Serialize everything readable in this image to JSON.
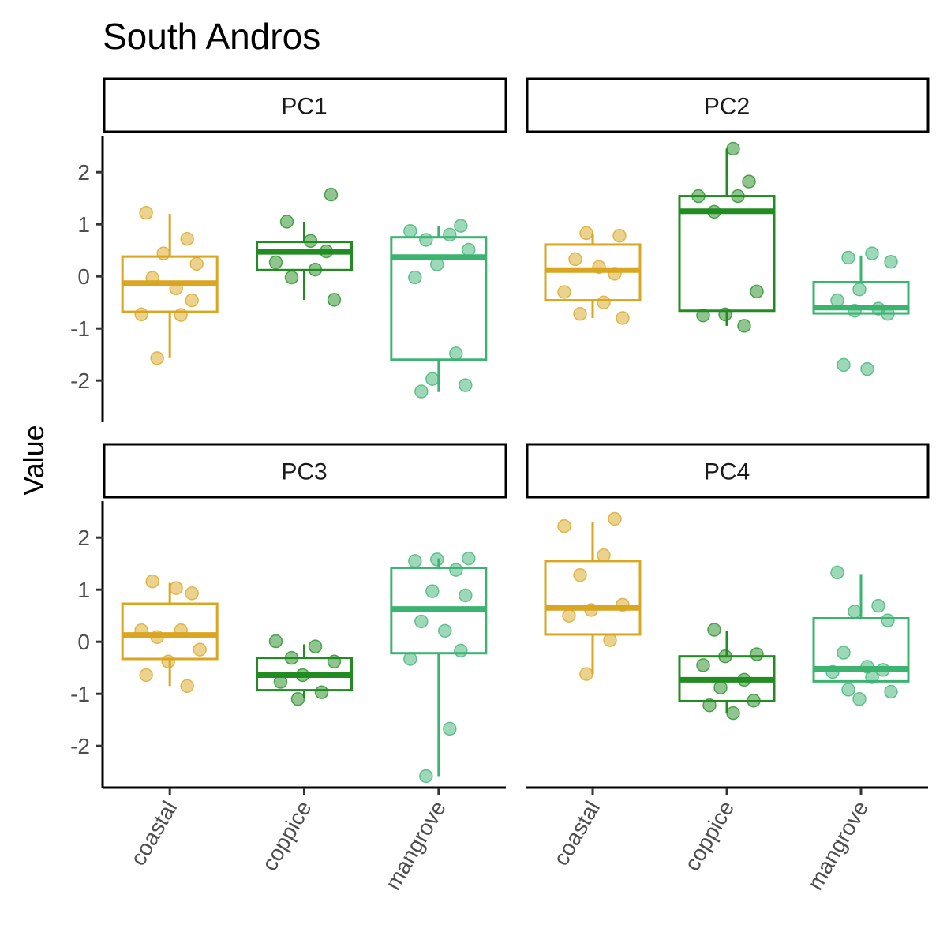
{
  "chart_data": {
    "type": "box",
    "title": "South Andros",
    "ylabel": "Value",
    "xlabel": "",
    "categories": [
      "coastal",
      "coppice",
      "mangrove"
    ],
    "ylim": [
      -2.8,
      2.7
    ],
    "yticks": [
      -2,
      -1,
      0,
      1,
      2
    ],
    "ytick_labels": [
      "-2",
      "-1",
      "0",
      "1",
      "2"
    ],
    "grid": false,
    "legend": "none",
    "colors": {
      "coastal": "#DAA520",
      "coppice": "#228B22",
      "mangrove": "#3CB371"
    },
    "panels": [
      {
        "name": "PC1",
        "boxes": [
          {
            "category": "coastal",
            "q1": -0.68,
            "median": -0.13,
            "q3": 0.38,
            "wlo": -1.57,
            "whi": 1.2
          },
          {
            "category": "coppice",
            "q1": 0.12,
            "median": 0.47,
            "q3": 0.66,
            "wlo": -0.45,
            "whi": 1.05
          },
          {
            "category": "mangrove",
            "q1": -1.6,
            "median": 0.37,
            "q3": 0.75,
            "wlo": -2.22,
            "whi": 0.97
          }
        ],
        "points": [
          {
            "category": "coastal",
            "values": [
              1.22,
              0.72,
              0.44,
              0.24,
              -0.03,
              -0.23,
              -0.46,
              -0.73,
              -0.74,
              -1.57
            ]
          },
          {
            "category": "coppice",
            "values": [
              1.57,
              1.05,
              0.68,
              0.48,
              0.27,
              0.13,
              -0.02,
              -0.45
            ]
          },
          {
            "category": "mangrove",
            "values": [
              0.97,
              0.87,
              0.8,
              0.7,
              0.51,
              0.23,
              -0.02,
              -1.48,
              -1.97,
              -2.09,
              -2.21
            ]
          }
        ]
      },
      {
        "name": "PC2",
        "boxes": [
          {
            "category": "coastal",
            "q1": -0.46,
            "median": 0.12,
            "q3": 0.61,
            "wlo": -0.8,
            "whi": 0.83
          },
          {
            "category": "coppice",
            "q1": -0.66,
            "median": 1.25,
            "q3": 1.54,
            "wlo": -0.95,
            "whi": 2.45
          },
          {
            "category": "mangrove",
            "q1": -0.71,
            "median": -0.6,
            "q3": -0.11,
            "wlo": -0.71,
            "whi": 0.4
          }
        ],
        "points": [
          {
            "category": "coastal",
            "values": [
              0.83,
              0.78,
              0.33,
              0.18,
              0.05,
              -0.3,
              -0.5,
              -0.72,
              -0.8
            ]
          },
          {
            "category": "coppice",
            "values": [
              2.45,
              1.82,
              1.54,
              1.54,
              1.24,
              -0.29,
              -0.73,
              -0.75,
              -0.95
            ]
          },
          {
            "category": "mangrove",
            "values": [
              0.44,
              0.36,
              0.28,
              -0.25,
              -0.46,
              -0.62,
              -0.66,
              -0.72,
              -1.7,
              -1.78
            ]
          }
        ]
      },
      {
        "name": "PC3",
        "boxes": [
          {
            "category": "coastal",
            "q1": -0.33,
            "median": 0.13,
            "q3": 0.73,
            "wlo": -0.85,
            "whi": 1.13
          },
          {
            "category": "coppice",
            "q1": -0.93,
            "median": -0.64,
            "q3": -0.31,
            "wlo": -1.08,
            "whi": -0.05
          },
          {
            "category": "mangrove",
            "q1": -0.22,
            "median": 0.63,
            "q3": 1.42,
            "wlo": -2.58,
            "whi": 1.6
          }
        ],
        "points": [
          {
            "category": "coastal",
            "values": [
              1.16,
              1.03,
              0.93,
              0.22,
              0.22,
              0.09,
              -0.15,
              -0.38,
              -0.64,
              -0.85
            ]
          },
          {
            "category": "coppice",
            "values": [
              0.01,
              -0.09,
              -0.31,
              -0.38,
              -0.64,
              -0.77,
              -0.97,
              -1.1
            ]
          },
          {
            "category": "mangrove",
            "values": [
              1.6,
              1.58,
              1.55,
              1.38,
              0.97,
              0.89,
              0.39,
              0.21,
              -0.17,
              -0.33,
              -1.67,
              -2.58
            ]
          }
        ]
      },
      {
        "name": "PC4",
        "boxes": [
          {
            "category": "coastal",
            "q1": 0.14,
            "median": 0.65,
            "q3": 1.55,
            "wlo": -0.62,
            "whi": 2.3
          },
          {
            "category": "coppice",
            "q1": -1.14,
            "median": -0.73,
            "q3": -0.28,
            "wlo": -1.37,
            "whi": 0.2
          },
          {
            "category": "mangrove",
            "q1": -0.76,
            "median": -0.52,
            "q3": 0.45,
            "wlo": -0.76,
            "whi": 1.3
          }
        ],
        "points": [
          {
            "category": "coastal",
            "values": [
              2.36,
              2.22,
              1.66,
              1.28,
              0.71,
              0.61,
              0.5,
              0.03,
              -0.62
            ]
          },
          {
            "category": "coppice",
            "values": [
              0.23,
              -0.24,
              -0.28,
              -0.45,
              -0.73,
              -0.88,
              -1.13,
              -1.22,
              -1.37
            ]
          },
          {
            "category": "mangrove",
            "values": [
              1.33,
              0.69,
              0.58,
              0.41,
              -0.21,
              -0.48,
              -0.54,
              -0.58,
              -0.68,
              -0.92,
              -0.96,
              -1.1
            ]
          }
        ]
      }
    ]
  }
}
